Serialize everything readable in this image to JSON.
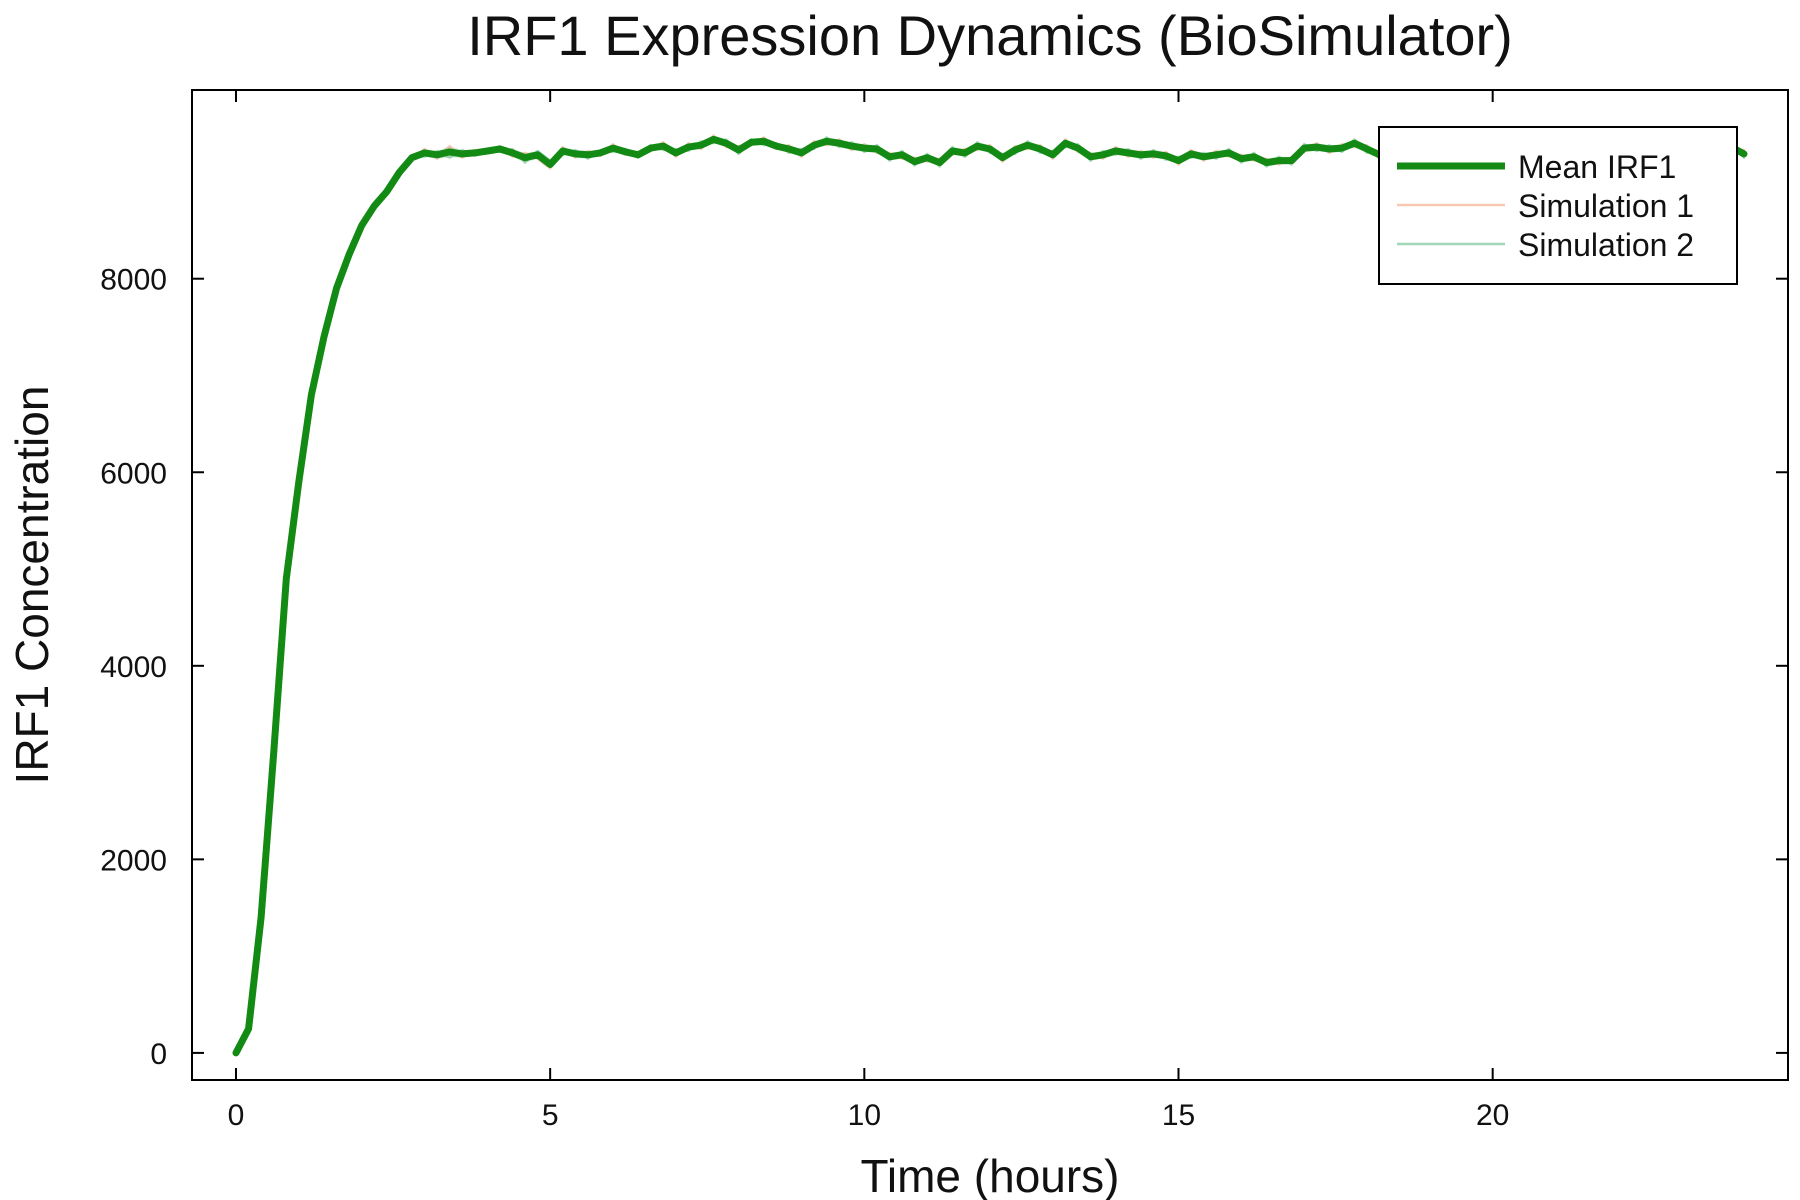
{
  "chart_data": {
    "type": "line",
    "title": "IRF1 Expression Dynamics (BioSimulator)",
    "xlabel": "Time (hours)",
    "ylabel": "IRF1 Concentration",
    "xlim": [
      -0.7,
      24.7
    ],
    "ylim": [
      -280,
      9950
    ],
    "xticks": [
      0,
      5,
      10,
      15,
      20
    ],
    "yticks": [
      0,
      2000,
      4000,
      6000,
      8000
    ],
    "grid": false,
    "legend_position": "top-right",
    "colors": {
      "mean": "#138a13",
      "simulation_1": "#f4a582",
      "simulation_2": "#66bb88",
      "frame": "#000000"
    },
    "x": [
      0,
      0.2,
      0.4,
      0.6,
      0.8,
      1.0,
      1.2,
      1.4,
      1.6,
      1.8,
      2.0,
      2.2,
      2.4,
      2.6,
      2.8,
      3.0,
      3.2,
      3.4,
      3.6,
      3.8,
      4.0,
      4.2,
      4.4,
      4.6,
      4.8,
      5.0,
      5.2,
      5.4,
      5.6,
      5.8,
      6.0,
      6.2,
      6.4,
      6.6,
      6.8,
      7.0,
      7.2,
      7.4,
      7.6,
      7.8,
      8.0,
      8.2,
      8.4,
      8.6,
      8.8,
      9.0,
      9.2,
      9.4,
      9.6,
      9.8,
      10.0,
      10.2,
      10.4,
      10.6,
      10.8,
      11.0,
      11.2,
      11.4,
      11.6,
      11.8,
      12.0,
      12.2,
      12.4,
      12.6,
      12.8,
      13.0,
      13.2,
      13.4,
      13.6,
      13.8,
      14.0,
      14.2,
      14.4,
      14.6,
      14.8,
      15.0,
      15.2,
      15.4,
      15.6,
      15.8,
      16.0,
      16.2,
      16.4,
      16.6,
      16.8,
      17.0,
      17.2,
      17.4,
      17.6,
      17.8,
      18.0,
      18.2,
      18.4,
      18.6,
      18.8,
      19.0,
      19.2,
      19.4,
      19.6,
      19.8,
      20.0,
      20.2,
      20.4,
      20.6,
      20.8,
      21.0,
      21.2,
      21.4,
      21.6,
      21.8,
      22.0,
      22.2,
      22.4,
      22.6,
      22.8,
      23.0,
      23.2,
      23.4,
      23.6,
      23.8,
      24.0
    ],
    "series": [
      {
        "name": "Mean IRF1",
        "values": [
          0,
          250,
          1400,
          3100,
          4900,
          5900,
          6800,
          7400,
          7900,
          8250,
          8550,
          8750,
          8900,
          9100,
          9250,
          9300,
          9280,
          9310,
          9290,
          9300,
          9320,
          9340,
          9300,
          9250,
          9280,
          9180,
          9320,
          9290,
          9280,
          9300,
          9350,
          9310,
          9280,
          9350,
          9370,
          9300,
          9360,
          9380,
          9440,
          9400,
          9330,
          9410,
          9420,
          9370,
          9340,
          9300,
          9380,
          9420,
          9400,
          9370,
          9350,
          9340,
          9260,
          9280,
          9210,
          9250,
          9200,
          9320,
          9300,
          9370,
          9340,
          9250,
          9330,
          9380,
          9340,
          9280,
          9400,
          9350,
          9260,
          9280,
          9320,
          9300,
          9280,
          9290,
          9270,
          9220,
          9290,
          9260,
          9280,
          9300,
          9240,
          9260,
          9200,
          9220,
          9220,
          9350,
          9360,
          9340,
          9350,
          9400,
          9340,
          9280,
          9300,
          9330,
          9300,
          9280,
          9350,
          9320,
          9300,
          9330,
          9310,
          9290,
          9350,
          9330,
          9300,
          9320,
          9280,
          9310,
          9350,
          9330,
          9380,
          9400,
          9350,
          9330,
          9380,
          9320,
          9350,
          9300,
          9330,
          9360,
          9290
        ]
      },
      {
        "name": "Simulation 1",
        "values": [
          0,
          200,
          1300,
          3000,
          4850,
          5880,
          6780,
          7390,
          7880,
          8240,
          8540,
          8740,
          8890,
          9080,
          9230,
          9340,
          9240,
          9370,
          9250,
          9330,
          9310,
          9370,
          9260,
          9300,
          9240,
          9140,
          9360,
          9250,
          9320,
          9270,
          9390,
          9280,
          9310,
          9320,
          9410,
          9260,
          9400,
          9340,
          9480,
          9360,
          9370,
          9380,
          9460,
          9340,
          9380,
          9260,
          9420,
          9380,
          9440,
          9330,
          9390,
          9300,
          9300,
          9240,
          9250,
          9210,
          9240,
          9280,
          9340,
          9330,
          9380,
          9210,
          9370,
          9340,
          9380,
          9240,
          9440,
          9310,
          9300,
          9240,
          9360,
          9260,
          9320,
          9250,
          9310,
          9180,
          9330,
          9220,
          9320,
          9260,
          9280,
          9220,
          9240,
          9180,
          9260,
          9310,
          9400,
          9300,
          9390,
          9360,
          9380,
          9240,
          9340,
          9290,
          9340,
          9240,
          9390,
          9280,
          9340,
          9290,
          9350,
          9250,
          9390,
          9290,
          9340,
          9280,
          9320,
          9270,
          9390,
          9290,
          9420,
          9360,
          9390,
          9290,
          9420,
          9280,
          9390,
          9260,
          9370,
          9320,
          9330
        ]
      },
      {
        "name": "Simulation 2",
        "values": [
          0,
          300,
          1500,
          3200,
          4950,
          5920,
          6820,
          7410,
          7920,
          8260,
          8560,
          8760,
          8910,
          9120,
          9270,
          9260,
          9320,
          9250,
          9330,
          9270,
          9330,
          9310,
          9340,
          9200,
          9320,
          9220,
          9280,
          9330,
          9240,
          9330,
          9310,
          9340,
          9250,
          9380,
          9330,
          9340,
          9320,
          9420,
          9400,
          9440,
          9290,
          9440,
          9380,
          9400,
          9300,
          9340,
          9340,
          9460,
          9360,
          9410,
          9310,
          9380,
          9220,
          9320,
          9170,
          9290,
          9160,
          9360,
          9260,
          9410,
          9300,
          9290,
          9290,
          9420,
          9300,
          9320,
          9360,
          9390,
          9220,
          9320,
          9280,
          9340,
          9240,
          9330,
          9230,
          9260,
          9250,
          9300,
          9240,
          9340,
          9200,
          9300,
          9160,
          9260,
          9180,
          9390,
          9320,
          9380,
          9310,
          9440,
          9300,
          9320,
          9260,
          9370,
          9260,
          9320,
          9310,
          9360,
          9260,
          9370,
          9270,
          9330,
          9310,
          9370,
          9260,
          9360,
          9240,
          9350,
          9310,
          9370,
          9340,
          9440,
          9310,
          9370,
          9340,
          9360,
          9310,
          9340,
          9290,
          9400,
          9250
        ]
      }
    ]
  }
}
